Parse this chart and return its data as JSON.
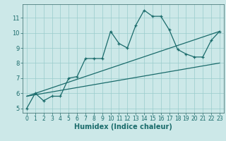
{
  "xlabel": "Humidex (Indice chaleur)",
  "bg_color": "#cce8e8",
  "line_color": "#1a6b6b",
  "xlim": [
    -0.5,
    23.5
  ],
  "ylim": [
    4.7,
    11.9
  ],
  "yticks": [
    5,
    6,
    7,
    8,
    9,
    10,
    11
  ],
  "xticks": [
    0,
    1,
    2,
    3,
    4,
    5,
    6,
    7,
    8,
    9,
    10,
    11,
    12,
    13,
    14,
    15,
    16,
    17,
    18,
    19,
    20,
    21,
    22,
    23
  ],
  "main_x": [
    0,
    1,
    2,
    3,
    4,
    5,
    6,
    7,
    8,
    9,
    10,
    11,
    12,
    13,
    14,
    15,
    16,
    17,
    18,
    19,
    20,
    21,
    22,
    23
  ],
  "main_y": [
    5.0,
    6.0,
    5.5,
    5.8,
    5.8,
    7.0,
    7.1,
    8.3,
    8.3,
    8.3,
    10.1,
    9.3,
    9.0,
    10.5,
    11.5,
    11.1,
    11.1,
    10.2,
    8.9,
    8.6,
    8.4,
    8.4,
    9.5,
    10.1
  ],
  "line2_x": [
    0,
    23
  ],
  "line2_y": [
    5.8,
    10.1
  ],
  "line3_x": [
    0,
    23
  ],
  "line3_y": [
    5.8,
    8.0
  ],
  "grid_color": "#99cccc",
  "spine_color": "#336666",
  "tick_fontsize": 5.5,
  "xlabel_fontsize": 7
}
